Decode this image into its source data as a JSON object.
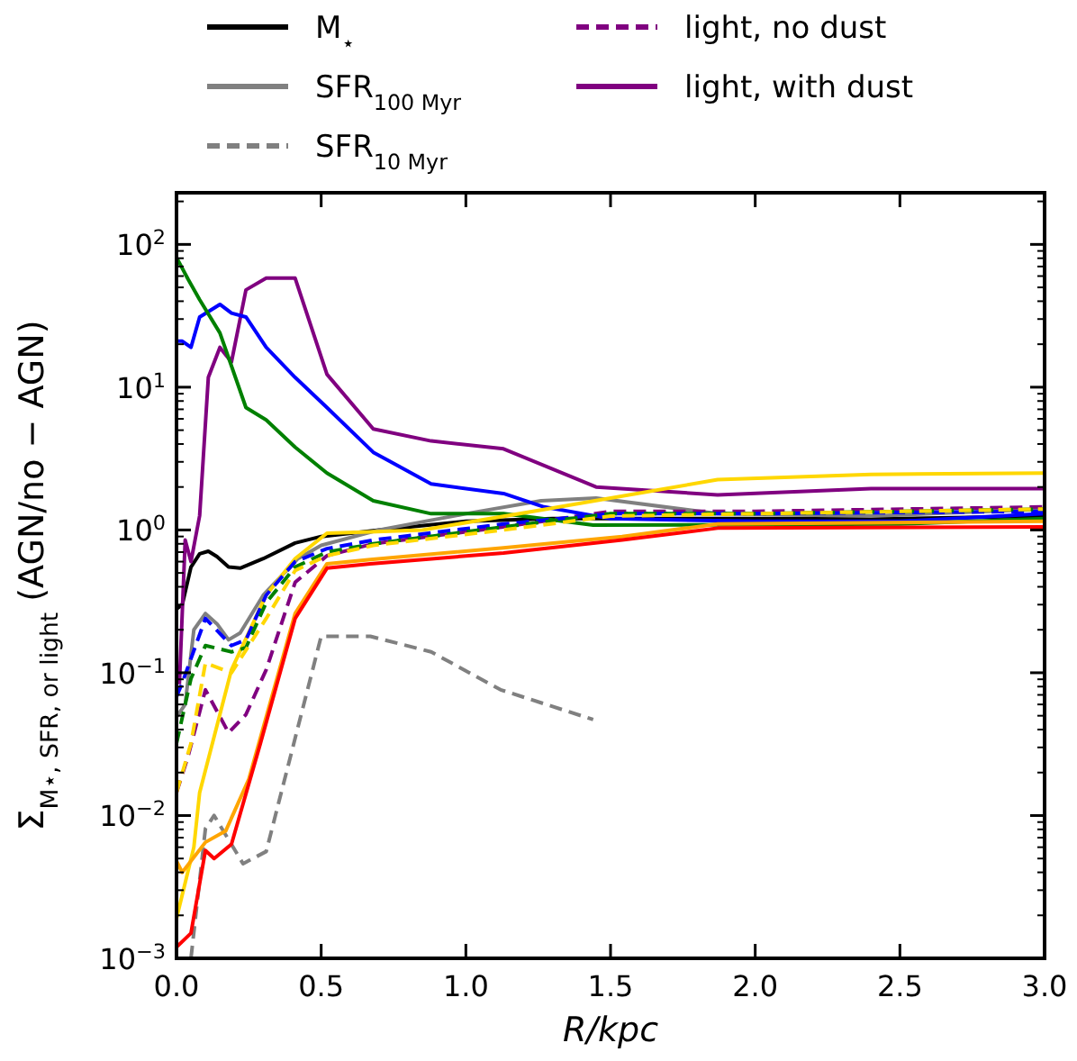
{
  "chart_data": {
    "type": "line",
    "xlabel": "R/kpc",
    "ylabel": "Σ$_{M⋆, SFR, or light}$ (AGN/no − AGN)",
    "log": "y",
    "xlim": [
      0,
      3
    ],
    "ylim": [
      0.001,
      230
    ],
    "xticks": [
      {
        "value": 0,
        "label": "0.0"
      },
      {
        "value": 0.5,
        "label": "0.5"
      },
      {
        "value": 1,
        "label": "1.0"
      },
      {
        "value": 1.5,
        "label": "1.5"
      },
      {
        "value": 2,
        "label": "2.0"
      },
      {
        "value": 2.5,
        "label": "2.5"
      },
      {
        "value": 3,
        "label": "3.0"
      }
    ],
    "yticks": [
      {
        "value": 0.001,
        "label": "10$^{−3}$"
      },
      {
        "value": 0.01,
        "label": "10$^{−2}$"
      },
      {
        "value": 0.1,
        "label": "10$^{−1}$"
      },
      {
        "value": 1,
        "label": "10$^{0}$"
      },
      {
        "value": 10,
        "label": "10$^{1}$"
      },
      {
        "value": 100,
        "label": "10$^{2}$"
      }
    ],
    "grid": false,
    "legend": "top",
    "marker": "none",
    "series": [
      {
        "name": "M$_{⋆}$",
        "color": "#000000",
        "line_style": "solid",
        "x": [
          0,
          0.02,
          0.05,
          0.08,
          0.11,
          0.14,
          0.18,
          0.22,
          0.3,
          0.41,
          0.5,
          0.7,
          1.0,
          1.3,
          1.6,
          2.0,
          2.5,
          3.0
        ],
        "values": [
          0.28,
          0.3,
          0.55,
          0.68,
          0.71,
          0.65,
          0.55,
          0.54,
          0.63,
          0.81,
          0.9,
          1.0,
          1.15,
          1.2,
          1.2,
          1.2,
          1.2,
          1.25
        ]
      },
      {
        "name": "SFR$_{100 Myr}$",
        "color": "#808080",
        "line_style": "solid",
        "x": [
          0,
          0.03,
          0.06,
          0.1,
          0.14,
          0.18,
          0.22,
          0.3,
          0.42,
          0.5,
          0.7,
          1.0,
          1.26,
          1.45,
          1.87,
          2.4,
          3.0
        ],
        "values": [
          0.049,
          0.06,
          0.2,
          0.26,
          0.22,
          0.17,
          0.19,
          0.35,
          0.63,
          0.78,
          1.0,
          1.3,
          1.6,
          1.67,
          1.3,
          1.25,
          1.4
        ]
      },
      {
        "name": "SFR$_{10 Myr}$",
        "color": "#808080",
        "line_style": "dashed",
        "x": [
          0.05,
          0.1,
          0.13,
          0.23,
          0.31,
          0.5,
          0.67,
          0.88,
          1.12,
          1.44
        ],
        "values": [
          0.001,
          0.0081,
          0.01,
          0.0046,
          0.0056,
          0.18,
          0.18,
          0.14,
          0.076,
          0.047
        ]
      },
      {
        "name": "light, no dust",
        "color": "#800080",
        "line_style": "dashed",
        "x": [
          0,
          0.04,
          0.1,
          0.18,
          0.24,
          0.31,
          0.41,
          0.52,
          0.68,
          1.13,
          1.5,
          2.0,
          3.0
        ],
        "values": [
          0.0145,
          0.026,
          0.076,
          0.038,
          0.051,
          0.105,
          0.43,
          0.66,
          0.8,
          1.05,
          1.35,
          1.35,
          1.45
        ]
      },
      {
        "name": "light, with dust",
        "color": "#800080",
        "line_style": "solid",
        "x": [
          0.01,
          0.03,
          0.05,
          0.08,
          0.11,
          0.15,
          0.19,
          0.24,
          0.31,
          0.41,
          0.52,
          0.68,
          0.88,
          1.13,
          1.45,
          1.87,
          2.4,
          3.0
        ],
        "values": [
          0.083,
          0.85,
          0.6,
          1.26,
          11.7,
          19,
          15,
          48,
          58,
          58,
          12.3,
          5.1,
          4.2,
          3.7,
          2.0,
          1.76,
          1.95,
          1.95
        ]
      },
      {
        "color": "#0000ff",
        "line_style": "solid",
        "x": [
          0,
          0.02,
          0.05,
          0.08,
          0.15,
          0.19,
          0.24,
          0.31,
          0.41,
          0.52,
          0.68,
          0.88,
          1.13,
          1.27,
          1.5,
          2.0,
          2.5,
          3.0
        ],
        "values": [
          21,
          21,
          19,
          31,
          38,
          33,
          31,
          19,
          11.7,
          7.2,
          3.5,
          2.1,
          1.8,
          1.45,
          1.2,
          1.15,
          1.15,
          1.3
        ]
      },
      {
        "color": "#008000",
        "line_style": "solid",
        "x": [
          0,
          0.04,
          0.08,
          0.15,
          0.24,
          0.31,
          0.41,
          0.52,
          0.68,
          0.88,
          1.13,
          1.44,
          2.5,
          3.0
        ],
        "values": [
          81,
          57,
          41,
          24,
          7.2,
          5.9,
          3.8,
          2.5,
          1.6,
          1.3,
          1.3,
          1.08,
          1.1,
          1.2
        ]
      },
      {
        "color": "#ffd700",
        "line_style": "solid",
        "x": [
          0,
          0.06,
          0.08,
          0.19,
          0.31,
          0.41,
          0.52,
          0.67,
          0.85,
          1.26,
          1.87,
          2.4,
          3.0
        ],
        "values": [
          0.0019,
          0.006,
          0.0145,
          0.105,
          0.35,
          0.63,
          0.95,
          0.97,
          1.0,
          1.38,
          2.25,
          2.45,
          2.5
        ]
      },
      {
        "color": "#ffa500",
        "line_style": "solid",
        "x": [
          0,
          0.02,
          0.1,
          0.17,
          0.25,
          0.41,
          0.52,
          0.67,
          1.13,
          1.54,
          1.87,
          3.0
        ],
        "values": [
          0.0048,
          0.004,
          0.0065,
          0.0078,
          0.018,
          0.26,
          0.58,
          0.62,
          0.75,
          0.9,
          1.1,
          1.15
        ]
      },
      {
        "color": "#ff0000",
        "line_style": "solid",
        "x": [
          0,
          0.05,
          0.1,
          0.13,
          0.19,
          0.29,
          0.41,
          0.52,
          0.67,
          1.13,
          1.54,
          1.87,
          3.0
        ],
        "values": [
          0.0012,
          0.0015,
          0.0057,
          0.005,
          0.0063,
          0.032,
          0.24,
          0.54,
          0.58,
          0.69,
          0.85,
          1.03,
          1.05
        ]
      },
      {
        "color": "#0000ff",
        "line_style": "dashed",
        "x": [
          0,
          0.02,
          0.1,
          0.19,
          0.24,
          0.31,
          0.41,
          0.52,
          0.68,
          1.13,
          1.5,
          2.0,
          3.0
        ],
        "values": [
          0.068,
          0.085,
          0.24,
          0.155,
          0.17,
          0.35,
          0.6,
          0.74,
          0.85,
          1.1,
          1.3,
          1.3,
          1.35
        ]
      },
      {
        "color": "#008000",
        "line_style": "dashed",
        "x": [
          0,
          0.05,
          0.1,
          0.19,
          0.24,
          0.31,
          0.41,
          0.52,
          0.68,
          1.13,
          1.5,
          2.0,
          3.0
        ],
        "values": [
          0.032,
          0.091,
          0.155,
          0.14,
          0.15,
          0.31,
          0.55,
          0.7,
          0.8,
          1.05,
          1.3,
          1.3,
          1.4
        ]
      },
      {
        "color": "#ffd700",
        "line_style": "dashed",
        "x": [
          0,
          0.05,
          0.1,
          0.19,
          0.31,
          0.41,
          0.52,
          0.68,
          1.13,
          1.5,
          2.0,
          3.0
        ],
        "values": [
          0.0145,
          0.032,
          0.117,
          0.1,
          0.24,
          0.52,
          0.66,
          0.78,
          1.0,
          1.25,
          1.3,
          1.4
        ]
      }
    ]
  }
}
